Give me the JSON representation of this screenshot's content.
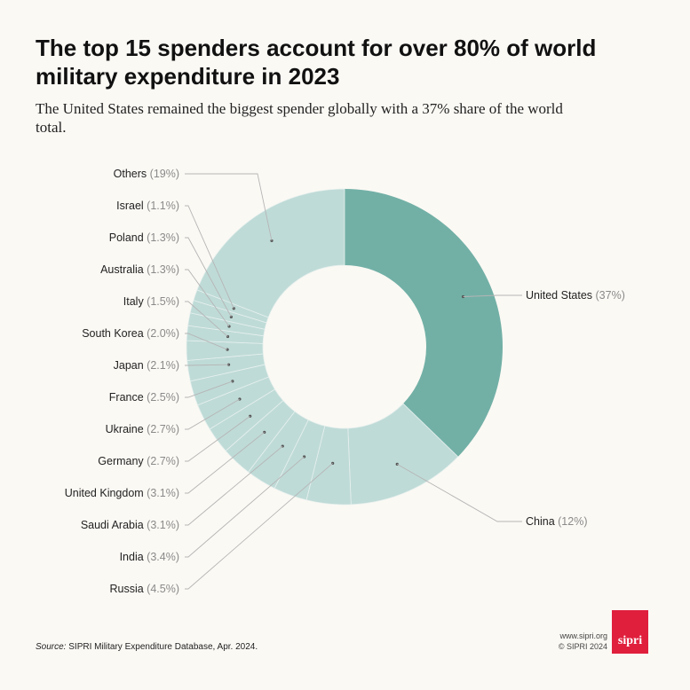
{
  "title": "The top 15 spenders account for over 80% of world military expenditure in 2023",
  "subtitle": "The United States remained the biggest spender globally with a 37% share of the world total.",
  "colors": {
    "us": "#72b0a6",
    "others": "#bfdbd7",
    "background": "#fbf9f4",
    "leader": "#b5b5b5",
    "dot": "#555555",
    "brand": "#e01f3d"
  },
  "chart_data": {
    "type": "pie",
    "variant": "donut",
    "title": "The top 15 spenders account for over 80% of world military expenditure in 2023",
    "unit": "%",
    "slices": [
      {
        "name": "United States",
        "value": 37,
        "pct_label": "(37%)"
      },
      {
        "name": "China",
        "value": 12,
        "pct_label": "(12%)"
      },
      {
        "name": "Russia",
        "value": 4.5,
        "pct_label": "(4.5%)"
      },
      {
        "name": "India",
        "value": 3.4,
        "pct_label": "(3.4%)"
      },
      {
        "name": "Saudi Arabia",
        "value": 3.1,
        "pct_label": "(3.1%)"
      },
      {
        "name": "United Kingdom",
        "value": 3.1,
        "pct_label": "(3.1%)"
      },
      {
        "name": "Germany",
        "value": 2.7,
        "pct_label": "(2.7%)"
      },
      {
        "name": "Ukraine",
        "value": 2.7,
        "pct_label": "(2.7%)"
      },
      {
        "name": "France",
        "value": 2.5,
        "pct_label": "(2.5%)"
      },
      {
        "name": "Japan",
        "value": 2.1,
        "pct_label": "(2.1%)"
      },
      {
        "name": "South Korea",
        "value": 2.0,
        "pct_label": "(2.0%)"
      },
      {
        "name": "Italy",
        "value": 1.5,
        "pct_label": "(1.5%)"
      },
      {
        "name": "Australia",
        "value": 1.3,
        "pct_label": "(1.3%)"
      },
      {
        "name": "Poland",
        "value": 1.3,
        "pct_label": "(1.3%)"
      },
      {
        "name": "Israel",
        "value": 1.1,
        "pct_label": "(1.1%)"
      },
      {
        "name": "Others",
        "value": 19,
        "pct_label": "(19%)"
      }
    ]
  },
  "source": {
    "prefix": "Source:",
    "text": "SIPRI Military Expenditure Database, Apr. 2024."
  },
  "footer": {
    "website": "www.sipri.org",
    "copyright": "© SIPRI 2024",
    "logo_text": "sipri"
  }
}
